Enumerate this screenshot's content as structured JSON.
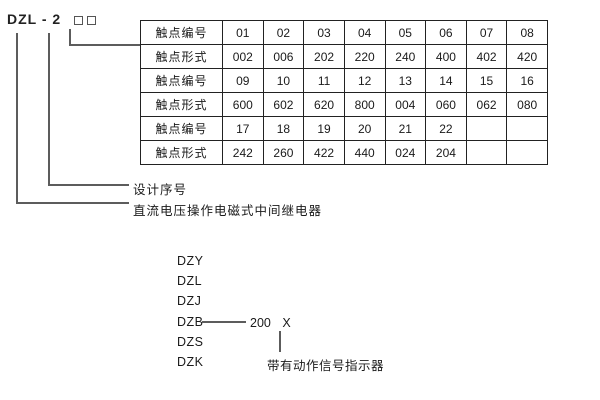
{
  "model": {
    "prefix": "DZL - 2",
    "placeholder_boxes": 2
  },
  "table": {
    "rows": [
      {
        "label": "触点编号",
        "values": [
          "01",
          "02",
          "03",
          "04",
          "05",
          "06",
          "07",
          "08"
        ]
      },
      {
        "label": "触点形式",
        "values": [
          "002",
          "006",
          "202",
          "220",
          "240",
          "400",
          "402",
          "420"
        ]
      },
      {
        "label": "触点编号",
        "values": [
          "09",
          "10",
          "11",
          "12",
          "13",
          "14",
          "15",
          "16"
        ]
      },
      {
        "label": "触点形式",
        "values": [
          "600",
          "602",
          "620",
          "800",
          "004",
          "060",
          "062",
          "080"
        ]
      },
      {
        "label": "触点编号",
        "values": [
          "17",
          "18",
          "19",
          "20",
          "21",
          "22",
          "",
          ""
        ]
      },
      {
        "label": "触点形式",
        "values": [
          "242",
          "260",
          "422",
          "440",
          "024",
          "204",
          "",
          ""
        ]
      }
    ]
  },
  "callouts": {
    "design_serial": "设计序号",
    "relay_description": "直流电压操作电磁式中间继电器"
  },
  "model_series": {
    "items": [
      "DZY",
      "DZL",
      "DZJ",
      "DZB",
      "DZS",
      "DZK"
    ],
    "dzb_number": "200",
    "dzb_x": "X",
    "indicator_note": "带有动作信号指示器"
  },
  "colors": {
    "line": "#5c5c5c",
    "table_border": "#222222",
    "text": "#1a1a1a"
  }
}
